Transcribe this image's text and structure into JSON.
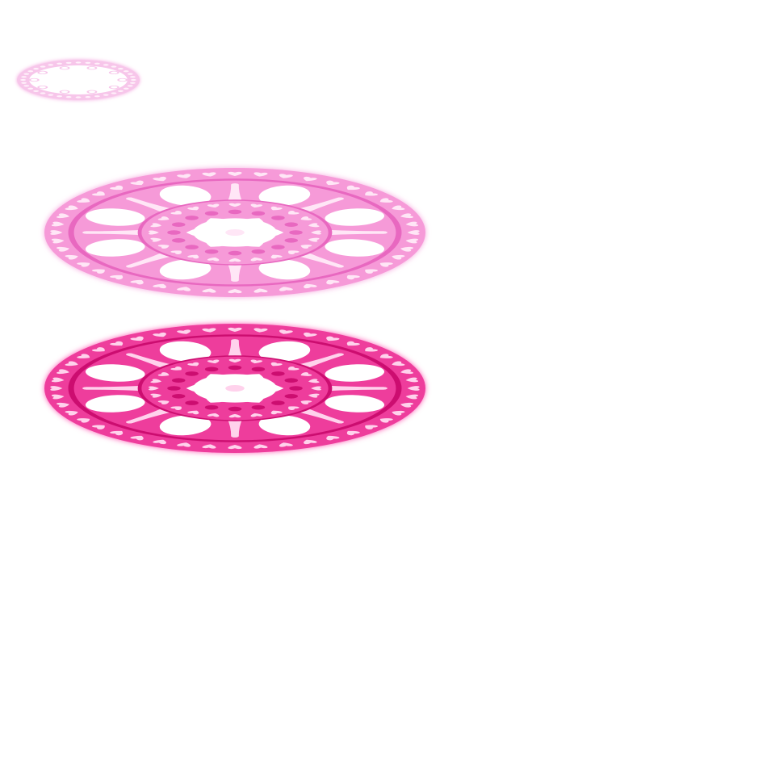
{
  "canvas": {
    "background": "#ffffff"
  },
  "sprites": [
    {
      "name": "small-pale-lace-ring",
      "kind": "ring",
      "colors": {
        "base": "#f7c6ea",
        "dark": "#e98bd0",
        "light": "#fff0fa",
        "glow": "#f5a6e0"
      }
    },
    {
      "name": "light-pink-lace-doily",
      "kind": "doily",
      "colors": {
        "base": "#f69ad8",
        "dark": "#e868c0",
        "light": "#ffe6f6",
        "glow": "#f7a6de"
      }
    },
    {
      "name": "hot-pink-lace-doily",
      "kind": "doily",
      "colors": {
        "base": "#ee3c9c",
        "dark": "#cc1070",
        "light": "#ffd2ec",
        "glow": "#ff5ab4"
      }
    }
  ]
}
